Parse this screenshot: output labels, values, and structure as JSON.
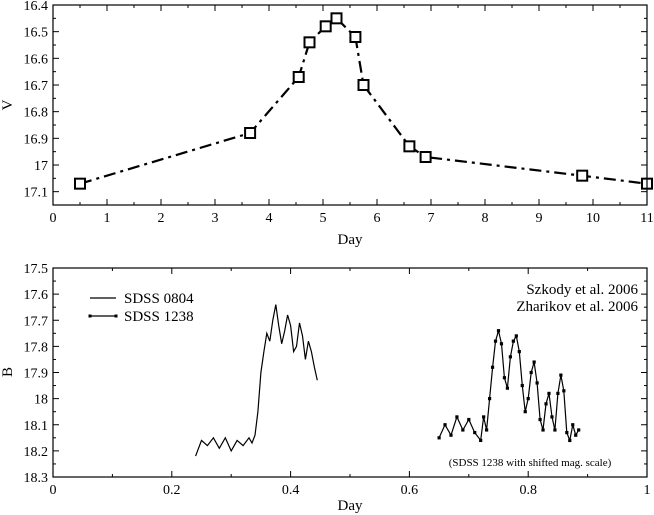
{
  "chart_data": [
    {
      "type": "line",
      "title": "",
      "xlabel": "Day",
      "ylabel": "V",
      "xlim": [
        0,
        11
      ],
      "ylim": [
        16.4,
        17.15
      ],
      "y_inverted": true,
      "x_ticks": [
        0,
        1,
        2,
        3,
        4,
        5,
        6,
        7,
        8,
        9,
        10,
        11
      ],
      "y_ticks": [
        16.4,
        16.5,
        16.6,
        16.7,
        16.8,
        16.9,
        17,
        17.1
      ],
      "y_tick_labels": [
        "16.4",
        "16.5",
        "16.6",
        "16.7",
        "16.8",
        "16.9",
        "17",
        "17.1"
      ],
      "series": [
        {
          "line_style": "dash-dot",
          "marker": "open-square",
          "color": "#000000",
          "x": [
            0.5,
            3.65,
            4.55,
            4.75,
            5.05,
            5.25,
            5.6,
            5.75,
            6.6,
            6.9,
            9.8,
            11.0
          ],
          "y": [
            17.07,
            16.88,
            16.67,
            16.54,
            16.48,
            16.45,
            16.52,
            16.7,
            16.93,
            16.97,
            17.04,
            17.07
          ]
        }
      ]
    },
    {
      "type": "line",
      "title": "",
      "xlabel": "Day",
      "ylabel": "B",
      "xlim": [
        0,
        1
      ],
      "ylim": [
        17.5,
        18.3
      ],
      "y_inverted": true,
      "x_ticks": [
        0,
        0.2,
        0.4,
        0.6,
        0.8,
        1
      ],
      "x_tick_labels": [
        "0",
        "0.2",
        "0.4",
        "0.6",
        "0.8",
        "1"
      ],
      "y_ticks": [
        17.5,
        17.6,
        17.7,
        17.8,
        17.9,
        18,
        18.1,
        18.2,
        18.3
      ],
      "y_tick_labels": [
        "17.5",
        "17.6",
        "17.7",
        "17.8",
        "17.9",
        "18",
        "18.1",
        "18.2",
        "18.3"
      ],
      "legend_position": "top-left",
      "annotations": [
        "Szkody et al. 2006",
        "Zharikov et al. 2006",
        "(SDSS 1238 with shifted mag. scale)"
      ],
      "series": [
        {
          "name": "SDSS 0804",
          "marker": "none",
          "color": "#000000",
          "x": [
            0.24,
            0.25,
            0.26,
            0.27,
            0.28,
            0.29,
            0.3,
            0.31,
            0.32,
            0.33,
            0.335,
            0.34,
            0.345,
            0.35,
            0.355,
            0.36,
            0.365,
            0.37,
            0.375,
            0.38,
            0.385,
            0.39,
            0.395,
            0.4,
            0.405,
            0.41,
            0.415,
            0.42,
            0.425,
            0.43,
            0.435,
            0.44,
            0.445
          ],
          "y": [
            18.22,
            18.16,
            18.18,
            18.15,
            18.19,
            18.15,
            18.2,
            18.16,
            18.18,
            18.15,
            18.17,
            18.14,
            18.05,
            17.9,
            17.82,
            17.75,
            17.78,
            17.7,
            17.64,
            17.72,
            17.79,
            17.74,
            17.68,
            17.72,
            17.82,
            17.8,
            17.71,
            17.76,
            17.85,
            17.78,
            17.82,
            17.88,
            17.93
          ]
        },
        {
          "name": "SDSS 1238",
          "marker": "small-filled-square",
          "color": "#000000",
          "x": [
            0.65,
            0.66,
            0.67,
            0.68,
            0.69,
            0.7,
            0.71,
            0.72,
            0.725,
            0.73,
            0.735,
            0.74,
            0.745,
            0.75,
            0.755,
            0.76,
            0.765,
            0.77,
            0.775,
            0.78,
            0.785,
            0.79,
            0.795,
            0.8,
            0.805,
            0.81,
            0.815,
            0.82,
            0.825,
            0.83,
            0.835,
            0.84,
            0.845,
            0.85,
            0.855,
            0.86,
            0.865,
            0.87,
            0.875,
            0.88,
            0.885
          ],
          "y": [
            18.15,
            18.1,
            18.14,
            18.07,
            18.12,
            18.08,
            18.13,
            18.16,
            18.07,
            18.12,
            18.0,
            17.88,
            17.78,
            17.74,
            17.79,
            17.92,
            17.96,
            17.84,
            17.78,
            17.76,
            17.82,
            17.95,
            18.05,
            18.0,
            17.9,
            17.86,
            17.94,
            18.08,
            18.12,
            18.02,
            17.98,
            18.07,
            18.12,
            17.98,
            17.91,
            17.97,
            18.13,
            18.16,
            18.1,
            18.14,
            18.12
          ]
        }
      ]
    }
  ]
}
